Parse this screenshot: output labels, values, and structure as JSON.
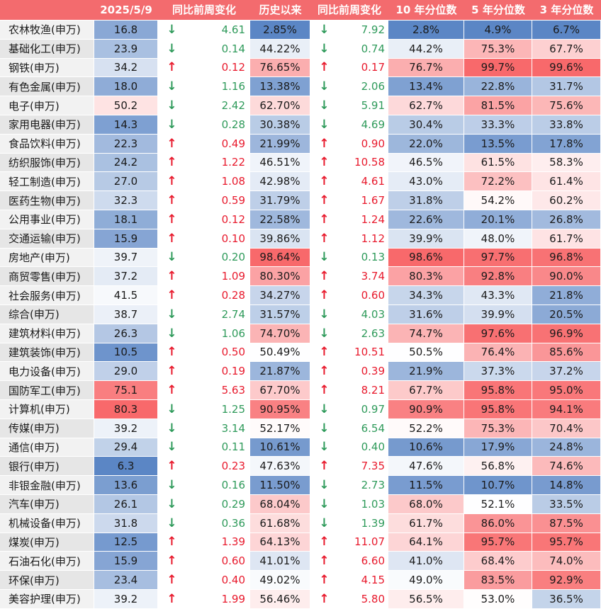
{
  "chart_data": {
    "type": "table",
    "headers": [
      "",
      "2025/5/9",
      "同比前周变化",
      "历史以来",
      "同比前周变化",
      "10 年分位数",
      "5 年分位数",
      "3 年分位数"
    ],
    "rows": [
      [
        "农林牧渔(申万)",
        "16.8",
        "down",
        "4.61",
        "2.85%",
        "down",
        "7.92",
        "2.8%",
        "4.9%",
        "6.7%"
      ],
      [
        "基础化工(申万)",
        "23.9",
        "down",
        "0.14",
        "44.22%",
        "down",
        "0.74",
        "44.2%",
        "75.3%",
        "67.7%"
      ],
      [
        "钢铁(申万)",
        "34.2",
        "up",
        "0.12",
        "76.65%",
        "up",
        "0.17",
        "76.7%",
        "99.7%",
        "99.6%"
      ],
      [
        "有色金属(申万)",
        "18.0",
        "down",
        "1.16",
        "13.38%",
        "down",
        "2.06",
        "13.4%",
        "22.8%",
        "31.7%"
      ],
      [
        "电子(申万)",
        "50.2",
        "down",
        "2.42",
        "62.70%",
        "down",
        "5.91",
        "62.7%",
        "81.5%",
        "75.6%"
      ],
      [
        "家用电器(申万)",
        "14.3",
        "down",
        "0.28",
        "30.38%",
        "down",
        "4.69",
        "30.4%",
        "33.3%",
        "33.8%"
      ],
      [
        "食品饮料(申万)",
        "22.3",
        "up",
        "0.49",
        "21.99%",
        "up",
        "0.90",
        "22.0%",
        "13.5%",
        "17.8%"
      ],
      [
        "纺织服饰(申万)",
        "24.2",
        "up",
        "1.22",
        "46.51%",
        "up",
        "10.58",
        "46.5%",
        "61.5%",
        "58.3%"
      ],
      [
        "轻工制造(申万)",
        "27.0",
        "up",
        "1.08",
        "42.98%",
        "up",
        "4.61",
        "43.0%",
        "72.2%",
        "61.4%"
      ],
      [
        "医药生物(申万)",
        "32.3",
        "up",
        "0.59",
        "31.79%",
        "up",
        "1.67",
        "31.8%",
        "54.2%",
        "60.2%"
      ],
      [
        "公用事业(申万)",
        "18.1",
        "up",
        "0.12",
        "22.58%",
        "up",
        "1.24",
        "22.6%",
        "20.1%",
        "26.8%"
      ],
      [
        "交通运输(申万)",
        "15.9",
        "up",
        "0.10",
        "39.86%",
        "up",
        "1.12",
        "39.9%",
        "48.0%",
        "61.7%"
      ],
      [
        "房地产(申万)",
        "39.7",
        "down",
        "0.20",
        "98.64%",
        "down",
        "0.13",
        "98.6%",
        "97.7%",
        "96.8%"
      ],
      [
        "商贸零售(申万)",
        "37.2",
        "up",
        "1.09",
        "80.30%",
        "up",
        "3.74",
        "80.3%",
        "92.8%",
        "90.0%"
      ],
      [
        "社会服务(申万)",
        "41.5",
        "up",
        "0.28",
        "34.27%",
        "up",
        "0.60",
        "34.3%",
        "43.3%",
        "21.8%"
      ],
      [
        "综合(申万)",
        "38.7",
        "down",
        "2.74",
        "31.57%",
        "down",
        "4.03",
        "31.6%",
        "39.9%",
        "20.5%"
      ],
      [
        "建筑材料(申万)",
        "26.3",
        "down",
        "1.06",
        "74.70%",
        "down",
        "2.63",
        "74.7%",
        "97.6%",
        "96.9%"
      ],
      [
        "建筑装饰(申万)",
        "10.5",
        "up",
        "0.50",
        "50.49%",
        "up",
        "10.51",
        "50.5%",
        "76.4%",
        "85.6%"
      ],
      [
        "电力设备(申万)",
        "29.0",
        "up",
        "0.19",
        "21.87%",
        "up",
        "0.39",
        "21.9%",
        "37.3%",
        "37.2%"
      ],
      [
        "国防军工(申万)",
        "75.1",
        "up",
        "5.63",
        "67.70%",
        "up",
        "8.21",
        "67.7%",
        "95.8%",
        "95.0%"
      ],
      [
        "计算机(申万)",
        "80.3",
        "down",
        "1.25",
        "90.95%",
        "down",
        "0.97",
        "90.9%",
        "95.8%",
        "94.1%"
      ],
      [
        "传媒(申万)",
        "39.2",
        "down",
        "3.14",
        "52.17%",
        "down",
        "6.54",
        "52.2%",
        "75.3%",
        "70.4%"
      ],
      [
        "通信(申万)",
        "29.4",
        "down",
        "0.11",
        "10.61%",
        "down",
        "0.40",
        "10.6%",
        "17.9%",
        "24.8%"
      ],
      [
        "银行(申万)",
        "6.3",
        "up",
        "0.23",
        "47.63%",
        "up",
        "7.35",
        "47.6%",
        "56.8%",
        "74.6%"
      ],
      [
        "非银金融(申万)",
        "13.6",
        "down",
        "0.16",
        "11.50%",
        "down",
        "2.73",
        "11.5%",
        "10.7%",
        "14.8%"
      ],
      [
        "汽车(申万)",
        "26.1",
        "down",
        "0.29",
        "68.04%",
        "down",
        "1.03",
        "68.0%",
        "52.1%",
        "33.5%"
      ],
      [
        "机械设备(申万)",
        "31.8",
        "down",
        "0.36",
        "61.68%",
        "down",
        "1.39",
        "61.7%",
        "86.0%",
        "87.5%"
      ],
      [
        "煤炭(申万)",
        "12.5",
        "up",
        "1.39",
        "64.13%",
        "up",
        "11.07",
        "64.1%",
        "95.7%",
        "95.7%"
      ],
      [
        "石油石化(申万)",
        "15.9",
        "up",
        "0.60",
        "41.01%",
        "up",
        "6.60",
        "41.0%",
        "68.4%",
        "74.0%"
      ],
      [
        "环保(申万)",
        "23.4",
        "up",
        "0.40",
        "49.02%",
        "up",
        "4.15",
        "49.0%",
        "83.5%",
        "92.9%"
      ],
      [
        "美容护理(申万)",
        "39.2",
        "up",
        "1.99",
        "56.46%",
        "up",
        "5.80",
        "56.5%",
        "53.0%",
        "36.5%"
      ]
    ],
    "arrows": {
      "up": "↑",
      "down": "↓"
    },
    "colors": {
      "header_bg": "#f36b6e",
      "heat_low": "#5b86c5",
      "heat_mid": "#ffffff",
      "heat_high": "#f8696b",
      "up_text": "#e8192c",
      "down_text": "#2e9a5a"
    }
  }
}
